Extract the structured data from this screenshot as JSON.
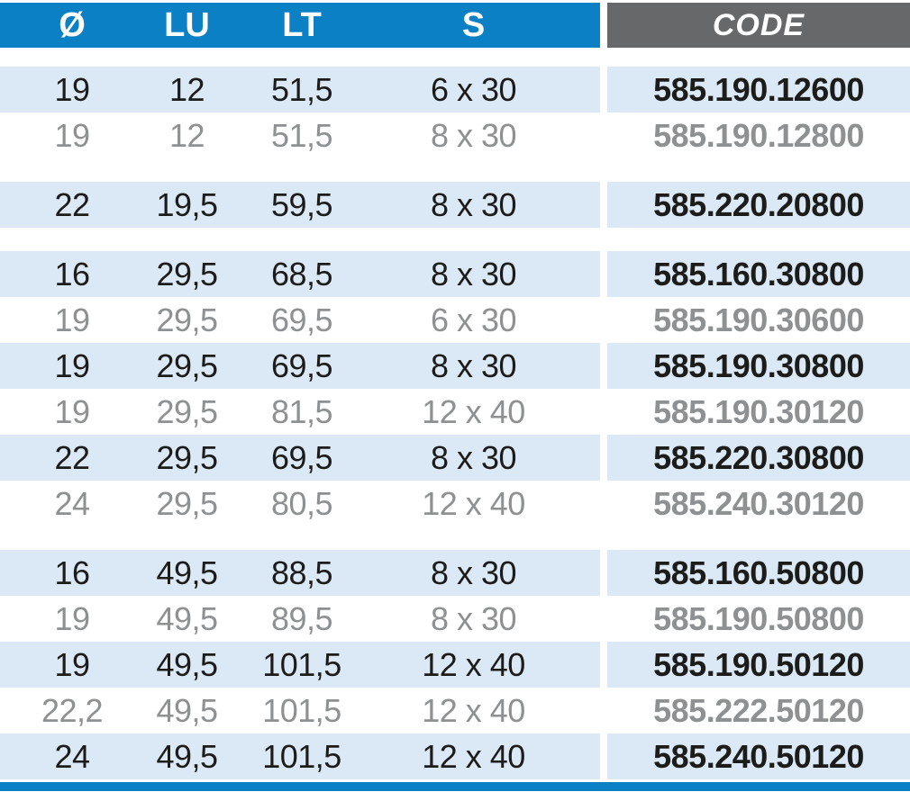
{
  "colors": {
    "header_blue": "#0b80c5",
    "header_gray": "#67686a",
    "stripe_blue": "#dbe8f6",
    "text_black": "#1c1c1a",
    "text_gray": "#8e9092"
  },
  "table": {
    "columns": [
      {
        "key": "d",
        "label": "Ø"
      },
      {
        "key": "lu",
        "label": "LU"
      },
      {
        "key": "lt",
        "label": "LT"
      },
      {
        "key": "s",
        "label": "S"
      },
      {
        "key": "code",
        "label": "CODE"
      }
    ],
    "rows": [
      {
        "d": "19",
        "lu": "12",
        "lt": "51,5",
        "s": "6 x 30",
        "code": "585.190.12600",
        "emphasis": "black",
        "stripe": true,
        "gap_before": false
      },
      {
        "d": "19",
        "lu": "12",
        "lt": "51,5",
        "s": "8 x 30",
        "code": "585.190.12800",
        "emphasis": "gray",
        "stripe": false,
        "gap_before": false
      },
      {
        "d": "22",
        "lu": "19,5",
        "lt": "59,5",
        "s": "8 x 30",
        "code": "585.220.20800",
        "emphasis": "black",
        "stripe": true,
        "gap_before": true
      },
      {
        "d": "16",
        "lu": "29,5",
        "lt": "68,5",
        "s": "8 x 30",
        "code": "585.160.30800",
        "emphasis": "black",
        "stripe": true,
        "gap_before": true
      },
      {
        "d": "19",
        "lu": "29,5",
        "lt": "69,5",
        "s": "6 x 30",
        "code": "585.190.30600",
        "emphasis": "gray",
        "stripe": false,
        "gap_before": false
      },
      {
        "d": "19",
        "lu": "29,5",
        "lt": "69,5",
        "s": "8 x 30",
        "code": "585.190.30800",
        "emphasis": "black",
        "stripe": true,
        "gap_before": false
      },
      {
        "d": "19",
        "lu": "29,5",
        "lt": "81,5",
        "s": "12 x 40",
        "code": "585.190.30120",
        "emphasis": "gray",
        "stripe": false,
        "gap_before": false
      },
      {
        "d": "22",
        "lu": "29,5",
        "lt": "69,5",
        "s": "8 x 30",
        "code": "585.220.30800",
        "emphasis": "black",
        "stripe": true,
        "gap_before": false
      },
      {
        "d": "24",
        "lu": "29,5",
        "lt": "80,5",
        "s": "12 x 40",
        "code": "585.240.30120",
        "emphasis": "gray",
        "stripe": false,
        "gap_before": false
      },
      {
        "d": "16",
        "lu": "49,5",
        "lt": "88,5",
        "s": "8 x 30",
        "code": "585.160.50800",
        "emphasis": "black",
        "stripe": true,
        "gap_before": true
      },
      {
        "d": "19",
        "lu": "49,5",
        "lt": "89,5",
        "s": "8 x 30",
        "code": "585.190.50800",
        "emphasis": "gray",
        "stripe": false,
        "gap_before": false
      },
      {
        "d": "19",
        "lu": "49,5",
        "lt": "101,5",
        "s": "12 x 40",
        "code": "585.190.50120",
        "emphasis": "black",
        "stripe": true,
        "gap_before": false
      },
      {
        "d": "22,2",
        "lu": "49,5",
        "lt": "101,5",
        "s": "12 x 40",
        "code": "585.222.50120",
        "emphasis": "gray",
        "stripe": false,
        "gap_before": false
      },
      {
        "d": "24",
        "lu": "49,5",
        "lt": "101,5",
        "s": "12 x 40",
        "code": "585.240.50120",
        "emphasis": "black",
        "stripe": true,
        "gap_before": false
      }
    ]
  }
}
